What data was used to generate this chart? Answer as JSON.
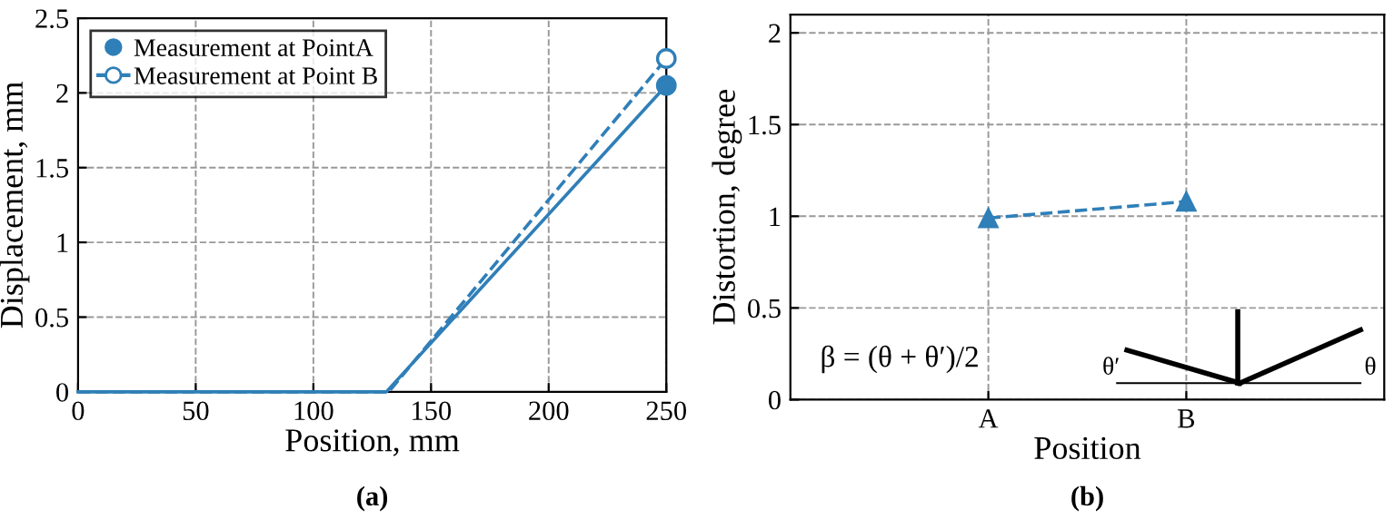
{
  "chart_data": [
    {
      "type": "line",
      "xlabel": "Position, mm",
      "ylabel": "Displacement, mm",
      "xlim": [
        0,
        250
      ],
      "xticks": [
        0,
        50,
        100,
        150,
        200,
        250
      ],
      "ylim": [
        0,
        2.5
      ],
      "yticks": [
        0,
        0.5,
        1,
        1.5,
        2,
        2.5
      ],
      "grid": true,
      "legend": "top left",
      "annotations": [
        "(a)"
      ],
      "series": [
        {
          "color": "#2f7fb8",
          "x": [
            0,
            131,
            250
          ],
          "values": [
            0,
            0,
            2.05
          ],
          "line_style": "solid",
          "marker": "none"
        },
        {
          "color": "#2f7fb8",
          "x": [
            0,
            132,
            250
          ],
          "values": [
            0,
            0,
            2.23
          ],
          "line_style": "dashed",
          "marker": "none"
        },
        {
          "type": "scatter",
          "name": "Measurement at PointA",
          "color": "#2f7fb8",
          "x": [
            250
          ],
          "values": [
            2.05
          ],
          "marker": "circle"
        },
        {
          "type": "scatter",
          "name": "Measurement at Point B",
          "color": "#2f7fb8",
          "x": [
            250
          ],
          "values": [
            2.23
          ],
          "marker": "circle"
        }
      ]
    },
    {
      "type": "line",
      "xlabel": "Position",
      "ylabel": "Distortion, degree",
      "categories": [
        "A",
        "B"
      ],
      "ylim": [
        0,
        2.1
      ],
      "yticks": [
        0,
        0.5,
        1,
        1.5,
        2
      ],
      "grid": true,
      "marker": "triangle",
      "line_style": "dashed",
      "annotations": [
        "(b)",
        "β = (θ + θ′)/2",
        "θ′",
        "θ"
      ],
      "series": [
        {
          "color": "#2f7fb8",
          "values": [
            0.99,
            1.08
          ]
        }
      ]
    }
  ]
}
